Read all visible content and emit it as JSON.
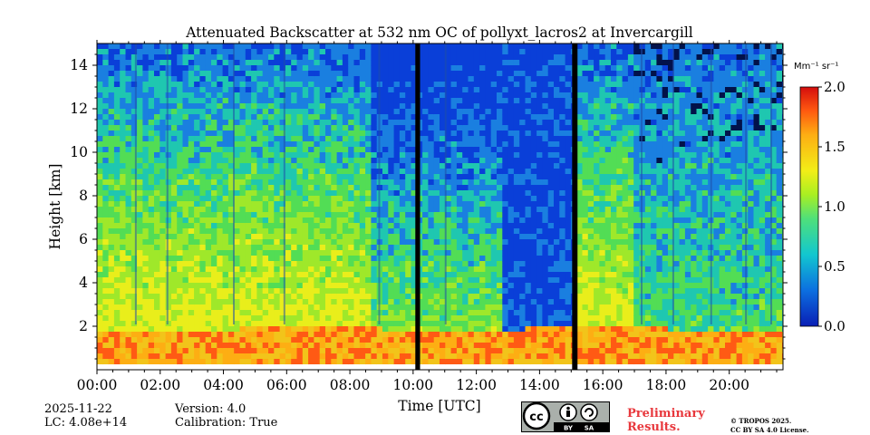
{
  "chart_data": {
    "type": "heatmap",
    "title": "Attenuated Backscatter at 532 nm OC of pollyxt_lacros2 at Invercargill",
    "xlabel": "Time [UTC]",
    "ylabel": "Height [km]",
    "x_ticks": [
      "00:00",
      "02:00",
      "04:00",
      "06:00",
      "08:00",
      "10:00",
      "12:00",
      "14:00",
      "16:00",
      "18:00",
      "20:00"
    ],
    "y_ticks": [
      "2",
      "4",
      "6",
      "8",
      "10",
      "12",
      "14"
    ],
    "xlim_hours": [
      0,
      21.7
    ],
    "ylim_km": [
      0,
      15
    ],
    "colorbar": {
      "unit": "Mm⁻¹ sr⁻¹",
      "ticks": [
        "0.0",
        "0.5",
        "1.0",
        "1.5",
        "2.0"
      ],
      "range": [
        0,
        2
      ]
    },
    "no_data_intervals_hours": [
      [
        10.07,
        10.22
      ],
      [
        15.03,
        15.2
      ]
    ],
    "cloud_layer_km": [
      0.3,
      2.0
    ]
  },
  "info": {
    "date": "2025-11-22",
    "lc": "LC: 4.08e+14",
    "version": "Version: 4.0",
    "calibration": "Calibration: True"
  },
  "license": {
    "cc_label": "cc",
    "by_label": "BY",
    "sa_label": "SA",
    "prelim_line1": "Preliminary",
    "prelim_line2": "Results.",
    "copyright_line1": "© TROPOS 2025.",
    "copyright_line2": "CC BY SA 4.0 License."
  },
  "colors": {
    "low": "#0a3fd8",
    "mid": "#7ed321",
    "high": "#f5e51b",
    "cloud": "#ff5a14",
    "cloud_top": "#d40d0d",
    "nodata": "#000000",
    "prelim": "#e8383d"
  }
}
